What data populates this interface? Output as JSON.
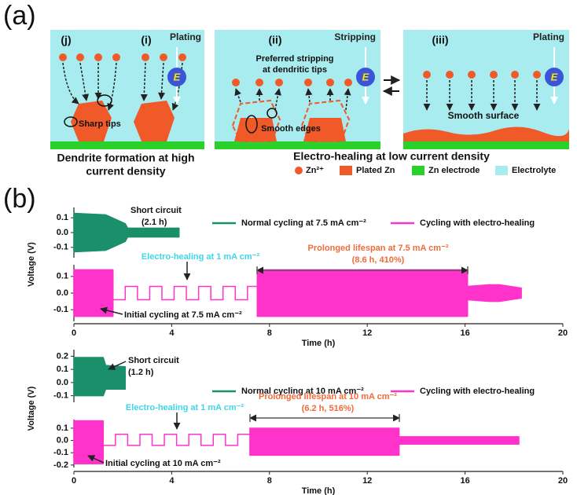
{
  "panel_a": {
    "label": "(a)",
    "boxes": [
      {
        "tags": [
          "(j)",
          "(i)"
        ],
        "mode": "Plating",
        "field": "E",
        "notes": [
          "Sharp tips"
        ]
      },
      {
        "tags": [
          "(ii)"
        ],
        "mode": "Stripping",
        "field": "E",
        "notes": [
          "Preferred stripping",
          "at dendritic tips",
          "Smooth edges"
        ]
      },
      {
        "tags": [
          "(iii)"
        ],
        "mode": "Plating",
        "field": "E",
        "notes": [
          "Smooth surface"
        ]
      }
    ],
    "captions": [
      [
        "Dendrite formation at high",
        "current density"
      ],
      "Electro-healing at low current density"
    ],
    "legend": [
      "Zn²⁺",
      "Plated Zn",
      "Zn electrode",
      "Electrolyte"
    ]
  },
  "panel_b_label": "(b)",
  "chart_data": [
    {
      "type": "band",
      "xlabel": "Time (h)",
      "ylabel": "Voltage (V)",
      "xlim": [
        0,
        20
      ],
      "xticks": [
        0,
        4,
        8,
        12,
        16,
        20
      ],
      "series": [
        {
          "name": "Normal cycling at 7.5 mA cm⁻²",
          "color": "#1b8f6a",
          "ylim": [
            -0.17,
            0.17
          ],
          "yticks": [
            0.1,
            {
              "value": 0,
              "label": "0.0"
            },
            -0.1
          ],
          "x": [
            0,
            1.3,
            2.1,
            2.2,
            4.3
          ],
          "high": [
            0.13,
            0.12,
            0.06,
            0.03,
            0.03
          ],
          "low": [
            -0.13,
            -0.12,
            -0.06,
            -0.03,
            -0.03
          ]
        },
        {
          "name": "Cycling with electro-healing",
          "color": "#ff33cc",
          "ylim": [
            -0.17,
            0.17
          ],
          "yticks": [
            0.1,
            {
              "value": 0,
              "label": "0.0"
            },
            -0.1
          ],
          "x": [
            0,
            1.6,
            1.6,
            2.1,
            2.1,
            2.6,
            2.6,
            3.1,
            3.1,
            3.6,
            3.6,
            4.1,
            4.1,
            4.6,
            4.6,
            5.1,
            5.1,
            5.6,
            5.6,
            6.1,
            6.1,
            6.6,
            6.6,
            7.1,
            7.1,
            7.5,
            7.5,
            16.1,
            16.1,
            17.0,
            17.4,
            18.3
          ],
          "high": [
            0.14,
            0.14,
            -0.04,
            -0.04,
            0.04,
            0.04,
            -0.04,
            -0.04,
            0.04,
            0.04,
            -0.04,
            -0.04,
            0.04,
            0.04,
            -0.04,
            -0.04,
            0.04,
            0.04,
            -0.04,
            -0.04,
            0.04,
            0.04,
            -0.04,
            -0.04,
            0.04,
            0.04,
            0.14,
            0.14,
            0.04,
            0.05,
            0.05,
            0.03
          ],
          "low": [
            -0.14,
            -0.14,
            -0.04,
            -0.04,
            0.04,
            0.04,
            -0.04,
            -0.04,
            0.04,
            0.04,
            -0.04,
            -0.04,
            0.04,
            0.04,
            -0.04,
            -0.04,
            0.04,
            0.04,
            -0.04,
            -0.04,
            0.04,
            0.04,
            -0.04,
            -0.04,
            0.04,
            0.04,
            -0.14,
            -0.14,
            -0.04,
            -0.05,
            -0.05,
            -0.03
          ]
        }
      ],
      "annotations": [
        {
          "text": "Short circuit",
          "color": "#111111"
        },
        {
          "text": "(2.1 h)",
          "color": "#111111"
        },
        {
          "text": "Electro-healing at 1 mA cm⁻²",
          "color": "#3fd6e6"
        },
        {
          "text": "Prolonged lifespan at 7.5 mA cm⁻²",
          "color": "#f26b3a"
        },
        {
          "text": "(8.6 h, 410%)",
          "color": "#f26b3a"
        },
        {
          "text": "Initial cycling at 7.5 mA cm⁻²",
          "color": "#111111"
        }
      ]
    },
    {
      "type": "band",
      "xlabel": "Time (h)",
      "ylabel": "Voltage (V)",
      "xlim": [
        0,
        20
      ],
      "xticks": [
        0,
        4,
        8,
        12,
        16,
        20
      ],
      "series": [
        {
          "name": "Normal cycling at 10 mA cm⁻²",
          "color": "#1b8f6a",
          "ylim": [
            -0.15,
            0.25
          ],
          "yticks": [
            0.2,
            0.1,
            {
              "value": 0,
              "label": "0.0"
            },
            -0.1
          ],
          "x": [
            0,
            1.2,
            1.3,
            2.1
          ],
          "high": [
            0.19,
            0.19,
            0.13,
            0.12
          ],
          "low": [
            -0.1,
            -0.1,
            -0.05,
            -0.05
          ]
        },
        {
          "name": "Cycling with electro-healing",
          "color": "#ff33cc",
          "ylim": [
            -0.22,
            0.17
          ],
          "yticks": [
            0.1,
            {
              "value": 0,
              "label": "0.0"
            },
            -0.1,
            -0.2
          ],
          "x": [
            0,
            1.2,
            1.2,
            1.7,
            1.7,
            2.2,
            2.2,
            2.7,
            2.7,
            3.2,
            3.2,
            3.7,
            3.7,
            4.2,
            4.2,
            4.7,
            4.7,
            5.2,
            5.2,
            5.7,
            5.7,
            6.2,
            6.2,
            6.7,
            6.7,
            7.2,
            7.2,
            13.3,
            13.3,
            18.2
          ],
          "high": [
            0.16,
            0.16,
            -0.04,
            -0.04,
            0.05,
            0.05,
            -0.04,
            -0.04,
            0.05,
            0.05,
            -0.04,
            -0.04,
            0.05,
            0.05,
            -0.04,
            -0.04,
            0.05,
            0.05,
            -0.04,
            -0.04,
            0.05,
            0.05,
            -0.04,
            -0.04,
            0.05,
            0.05,
            0.1,
            0.1,
            0.03,
            0.03
          ],
          "low": [
            -0.19,
            -0.19,
            -0.04,
            -0.04,
            0.05,
            0.05,
            -0.04,
            -0.04,
            0.05,
            0.05,
            -0.04,
            -0.04,
            0.05,
            0.05,
            -0.04,
            -0.04,
            0.05,
            0.05,
            -0.04,
            -0.04,
            0.05,
            0.05,
            -0.04,
            -0.04,
            0.05,
            0.05,
            -0.12,
            -0.12,
            -0.03,
            -0.03
          ]
        }
      ],
      "annotations": [
        {
          "text": "Short circuit",
          "color": "#111111"
        },
        {
          "text": "(1.2 h)",
          "color": "#111111"
        },
        {
          "text": "Electro-healing at 1 mA cm⁻²",
          "color": "#3fd6e6"
        },
        {
          "text": "Prolonged lifespan at 10 mA cm⁻²",
          "color": "#f26b3a"
        },
        {
          "text": "(6.2 h, 516%)",
          "color": "#f26b3a"
        },
        {
          "text": "Initial cycling at 10 mA cm⁻²",
          "color": "#111111"
        }
      ]
    }
  ]
}
